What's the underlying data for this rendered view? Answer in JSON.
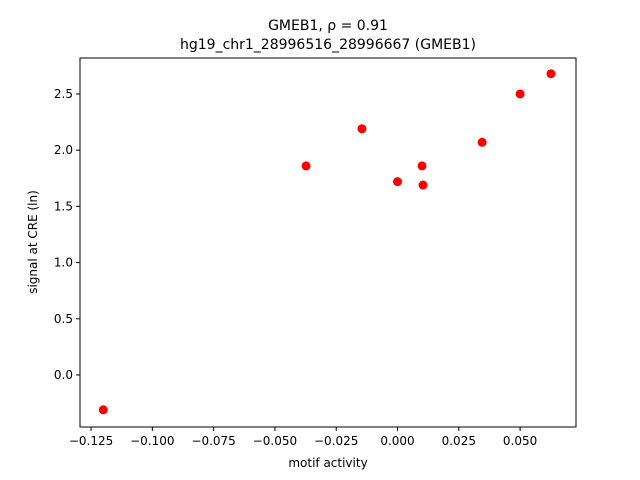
{
  "chart_data": {
    "type": "scatter",
    "title": "GMEB1, ρ = 0.91",
    "subtitle": "hg19_chr1_28996516_28996667 (GMEB1)",
    "x_label": "motif activity",
    "y_label": "signal at CRE (ln)",
    "color": "#ff0000",
    "x": [
      -0.12,
      -0.0373,
      -0.0145,
      0.0,
      0.01,
      0.0104,
      0.0345,
      0.05,
      0.0626
    ],
    "values": [
      -0.31,
      1.86,
      2.19,
      1.72,
      1.86,
      1.69,
      2.07,
      2.5,
      2.68
    ],
    "xlim": [
      -0.1295,
      0.0728
    ],
    "ylim": [
      -0.463,
      2.82
    ],
    "xticks": [
      {
        "value": -0.125,
        "label": "−0.125"
      },
      {
        "value": -0.1,
        "label": "−0.100"
      },
      {
        "value": -0.075,
        "label": "−0.075"
      },
      {
        "value": -0.05,
        "label": "−0.050"
      },
      {
        "value": -0.025,
        "label": "−0.025"
      },
      {
        "value": 0,
        "label": "0.000"
      },
      {
        "value": 0.025,
        "label": "0.025"
      },
      {
        "value": 0.05,
        "label": "0.050"
      }
    ],
    "yticks": [
      {
        "value": 0,
        "label": "0.0"
      },
      0.5,
      {
        "value": 1,
        "label": "1.0"
      },
      1.5,
      {
        "value": 2,
        "label": "2.0"
      },
      2.5
    ]
  }
}
